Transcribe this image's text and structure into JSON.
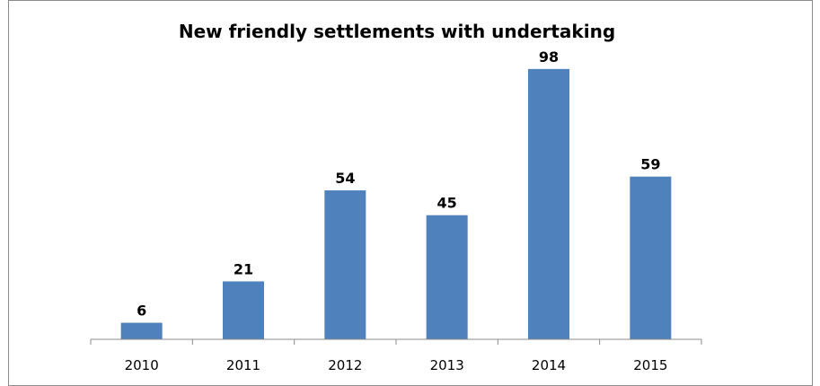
{
  "chart_data": {
    "type": "bar",
    "title": "New friendly settlements with undertaking",
    "xlabel": "",
    "ylabel": "",
    "categories": [
      "2010",
      "2011",
      "2012",
      "2013",
      "2014",
      "2015"
    ],
    "values": [
      6,
      21,
      54,
      45,
      98,
      59
    ],
    "ylim": [
      0,
      110
    ],
    "grid": false,
    "legend": "none",
    "bar_color": "#4f81bd",
    "axis_color": "#8c8c8c"
  }
}
